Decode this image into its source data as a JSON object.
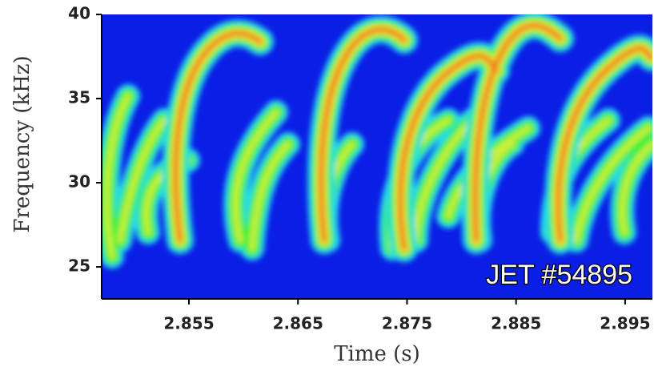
{
  "chart_data": {
    "type": "spectrogram",
    "xlabel": "Time (s)",
    "ylabel": "Frequency (kHz)",
    "annotation": "JET #54895",
    "xlim": [
      2.847,
      2.8975
    ],
    "xticks": [
      2.855,
      2.865,
      2.875,
      2.885,
      2.895
    ],
    "ylim": [
      23.1,
      40
    ],
    "yticks": [
      25,
      30,
      35,
      40
    ],
    "background": "#0a1ee6"
  }
}
